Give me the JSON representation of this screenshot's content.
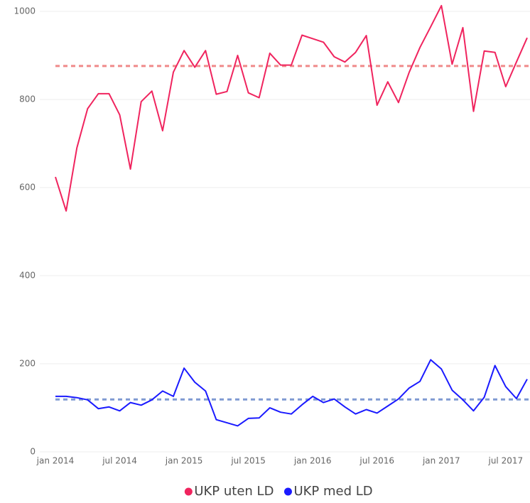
{
  "chart_data": {
    "type": "line",
    "x": [
      "2014-01",
      "2014-02",
      "2014-03",
      "2014-04",
      "2014-05",
      "2014-06",
      "2014-07",
      "2014-08",
      "2014-09",
      "2014-10",
      "2014-11",
      "2014-12",
      "2015-01",
      "2015-02",
      "2015-03",
      "2015-04",
      "2015-05",
      "2015-06",
      "2015-07",
      "2015-08",
      "2015-09",
      "2015-10",
      "2015-11",
      "2015-12",
      "2016-01",
      "2016-02",
      "2016-03",
      "2016-04",
      "2016-05",
      "2016-06",
      "2016-07",
      "2016-08",
      "2016-09",
      "2016-10",
      "2016-11",
      "2016-12",
      "2017-01",
      "2017-02",
      "2017-03",
      "2017-04",
      "2017-05",
      "2017-06",
      "2017-07",
      "2017-08",
      "2017-09"
    ],
    "series": [
      {
        "name": "UKP uten LD",
        "color": "#f0245e",
        "values": [
          624,
          547,
          690,
          779,
          813,
          813,
          765,
          642,
          795,
          819,
          729,
          862,
          911,
          873,
          911,
          812,
          818,
          900,
          815,
          804,
          905,
          878,
          878,
          946,
          938,
          930,
          897,
          885,
          907,
          945,
          787,
          840,
          793,
          862,
          918,
          965,
          1013,
          880,
          963,
          773,
          910,
          907,
          829,
          885,
          940
        ]
      },
      {
        "name": "UKP med LD",
        "color": "#1a1aff",
        "values": [
          126,
          126,
          123,
          118,
          98,
          102,
          93,
          112,
          106,
          118,
          138,
          126,
          190,
          158,
          138,
          73,
          66,
          59,
          76,
          77,
          100,
          90,
          86,
          107,
          126,
          112,
          120,
          102,
          86,
          96,
          88,
          104,
          120,
          145,
          160,
          209,
          188,
          140,
          118,
          93,
          124,
          196,
          148,
          121,
          165
        ]
      }
    ],
    "reference_lines": [
      {
        "value": 876,
        "color": "#f08a8a"
      },
      {
        "value": 119,
        "color": "#7f9ad2"
      }
    ],
    "xlim": [
      "2014-01",
      "2017-09"
    ],
    "xticks": [
      {
        "value": "2014-01",
        "label": "jan 2014"
      },
      {
        "value": "2014-07",
        "label": "jul 2014"
      },
      {
        "value": "2015-01",
        "label": "jan 2015"
      },
      {
        "value": "2015-07",
        "label": "jul 2015"
      },
      {
        "value": "2016-01",
        "label": "jan 2016"
      },
      {
        "value": "2016-07",
        "label": "jul 2016"
      },
      {
        "value": "2017-01",
        "label": "jan 2017"
      },
      {
        "value": "2017-07",
        "label": "jul 2017"
      }
    ],
    "ylim": [
      0,
      1000
    ],
    "yticks": [
      0,
      200,
      400,
      600,
      800,
      1000
    ],
    "grid": true,
    "legend": "bottom"
  }
}
